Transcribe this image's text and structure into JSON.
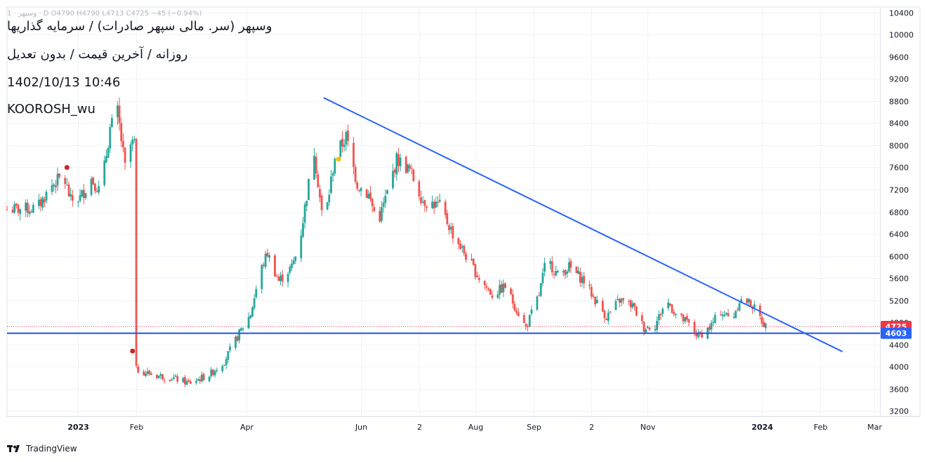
{
  "overlay": {
    "header": "1 · وسپهر · D  O4790  H4790  L4713  C4725  −45 (−0.94%)",
    "title": "وسپهر (سر. مالی سپهر صادرات) / سرمایه گذاریها",
    "subtitle": "روزانه / آخرین قیمت / بدون تعدیل",
    "datetime": "1402/10/13 10:46",
    "author": "KOOROSH_wu"
  },
  "brand": {
    "name": "TradingView"
  },
  "colors": {
    "up": "#26a69a",
    "down": "#ef5350",
    "trendline": "#2962ff",
    "hline": "#1e53e5",
    "grid": "#f0f3fa",
    "axis_text": "#131722",
    "last_price_tag": "#f23645",
    "hline_tag": "#2962ff"
  },
  "chart_data": {
    "type": "candlestick",
    "symbol": "وسپهر",
    "interval": "daily",
    "ohlc": {
      "open": 4790,
      "high": 4790,
      "low": 4713,
      "close": 4725,
      "change": "-45",
      "change_pct": "-0.94%"
    },
    "y_axis": {
      "ticks": [
        "3200",
        "3600",
        "4000",
        "4400",
        "4800",
        "5200",
        "5600",
        "6000",
        "6400",
        "6800",
        "7200",
        "7600",
        "8000",
        "8400",
        "8800",
        "9200",
        "9600",
        "10000",
        "10400"
      ],
      "range": [
        3100,
        10500
      ]
    },
    "x_axis": {
      "ticks": [
        {
          "label": "2023",
          "date": "2023-01-01"
        },
        {
          "label": "Feb",
          "date": "2023-02-01"
        },
        {
          "label": "Apr",
          "date": "2023-04-01"
        },
        {
          "label": "Jun",
          "date": "2023-06-01"
        },
        {
          "label": "2",
          "date": "2023-07-02"
        },
        {
          "label": "Aug",
          "date": "2023-08-01"
        },
        {
          "label": "Sep",
          "date": "2023-09-01"
        },
        {
          "label": "2",
          "date": "2023-10-02"
        },
        {
          "label": "Nov",
          "date": "2023-11-01"
        },
        {
          "label": "2024",
          "date": "2024-01-01"
        },
        {
          "label": "Feb",
          "date": "2024-02-01"
        },
        {
          "label": "Mar",
          "date": "2024-03-01"
        }
      ],
      "range": [
        "2022-11-24",
        "2024-03-04"
      ]
    },
    "last_price": {
      "label": "4725",
      "value": 4725
    },
    "horizontal_line": {
      "label": "4603",
      "value": 4603
    },
    "trendline": {
      "start": {
        "date": "2023-05-12",
        "value": 8860
      },
      "end": {
        "date": "2024-02-13",
        "value": 4270
      }
    },
    "markers": [
      {
        "date": "2022-12-26",
        "value": 7600,
        "color": "#c62828"
      },
      {
        "date": "2023-01-30",
        "value": 4280,
        "color": "#c62828"
      },
      {
        "date": "2023-05-20",
        "value": 7750,
        "color": "#f4c20d"
      }
    ],
    "path": [
      {
        "date": "2022-11-24",
        "value": 6840
      },
      {
        "date": "2022-12-10",
        "value": 6860
      },
      {
        "date": "2022-12-18",
        "value": 7280
      },
      {
        "date": "2022-12-24",
        "value": 7450
      },
      {
        "date": "2022-12-28",
        "value": 7000
      },
      {
        "date": "2023-01-02",
        "value": 7050
      },
      {
        "date": "2023-01-08",
        "value": 7400
      },
      {
        "date": "2023-01-13",
        "value": 7150
      },
      {
        "date": "2023-01-18",
        "value": 8300
      },
      {
        "date": "2023-01-22",
        "value": 8600
      },
      {
        "date": "2023-01-26",
        "value": 7600
      },
      {
        "date": "2023-01-29",
        "value": 8000
      },
      {
        "date": "2023-01-31",
        "value": 8050
      },
      {
        "date": "2023-02-01",
        "value": 3950
      },
      {
        "date": "2023-02-10",
        "value": 3850
      },
      {
        "date": "2023-02-20",
        "value": 3800
      },
      {
        "date": "2023-03-01",
        "value": 3700
      },
      {
        "date": "2023-03-12",
        "value": 3850
      },
      {
        "date": "2023-03-20",
        "value": 4100
      },
      {
        "date": "2023-03-28",
        "value": 4600
      },
      {
        "date": "2023-04-03",
        "value": 4950
      },
      {
        "date": "2023-04-08",
        "value": 5700
      },
      {
        "date": "2023-04-12",
        "value": 6050
      },
      {
        "date": "2023-04-18",
        "value": 5550
      },
      {
        "date": "2023-04-25",
        "value": 5800
      },
      {
        "date": "2023-04-29",
        "value": 6200
      },
      {
        "date": "2023-05-03",
        "value": 7100
      },
      {
        "date": "2023-05-07",
        "value": 7900
      },
      {
        "date": "2023-05-12",
        "value": 6500
      },
      {
        "date": "2023-05-18",
        "value": 7800
      },
      {
        "date": "2023-05-24",
        "value": 8150
      },
      {
        "date": "2023-05-30",
        "value": 7300
      },
      {
        "date": "2023-06-05",
        "value": 7100
      },
      {
        "date": "2023-06-10",
        "value": 6600
      },
      {
        "date": "2023-06-16",
        "value": 7250
      },
      {
        "date": "2023-06-20",
        "value": 7750
      },
      {
        "date": "2023-06-27",
        "value": 7550
      },
      {
        "date": "2023-07-04",
        "value": 7000
      },
      {
        "date": "2023-07-13",
        "value": 6900
      },
      {
        "date": "2023-07-20",
        "value": 6400
      },
      {
        "date": "2023-07-27",
        "value": 6000
      },
      {
        "date": "2023-08-03",
        "value": 5600
      },
      {
        "date": "2023-08-10",
        "value": 5300
      },
      {
        "date": "2023-08-17",
        "value": 5450
      },
      {
        "date": "2023-08-22",
        "value": 5100
      },
      {
        "date": "2023-08-28",
        "value": 4700
      },
      {
        "date": "2023-09-04",
        "value": 5300
      },
      {
        "date": "2023-09-08",
        "value": 5950
      },
      {
        "date": "2023-09-14",
        "value": 5650
      },
      {
        "date": "2023-09-20",
        "value": 5800
      },
      {
        "date": "2023-09-28",
        "value": 5550
      },
      {
        "date": "2023-10-04",
        "value": 5200
      },
      {
        "date": "2023-10-10",
        "value": 4900
      },
      {
        "date": "2023-10-17",
        "value": 5200
      },
      {
        "date": "2023-10-24",
        "value": 5100
      },
      {
        "date": "2023-10-30",
        "value": 4700
      },
      {
        "date": "2023-11-05",
        "value": 4750
      },
      {
        "date": "2023-11-11",
        "value": 5200
      },
      {
        "date": "2023-11-17",
        "value": 4900
      },
      {
        "date": "2023-11-22",
        "value": 4800
      },
      {
        "date": "2023-11-28",
        "value": 4550
      },
      {
        "date": "2023-12-04",
        "value": 4700
      },
      {
        "date": "2023-12-10",
        "value": 5000
      },
      {
        "date": "2023-12-16",
        "value": 4850
      },
      {
        "date": "2023-12-20",
        "value": 5200
      },
      {
        "date": "2023-12-26",
        "value": 5150
      },
      {
        "date": "2024-01-03",
        "value": 4725
      }
    ],
    "gaps": [
      "2023-01-31"
    ]
  }
}
